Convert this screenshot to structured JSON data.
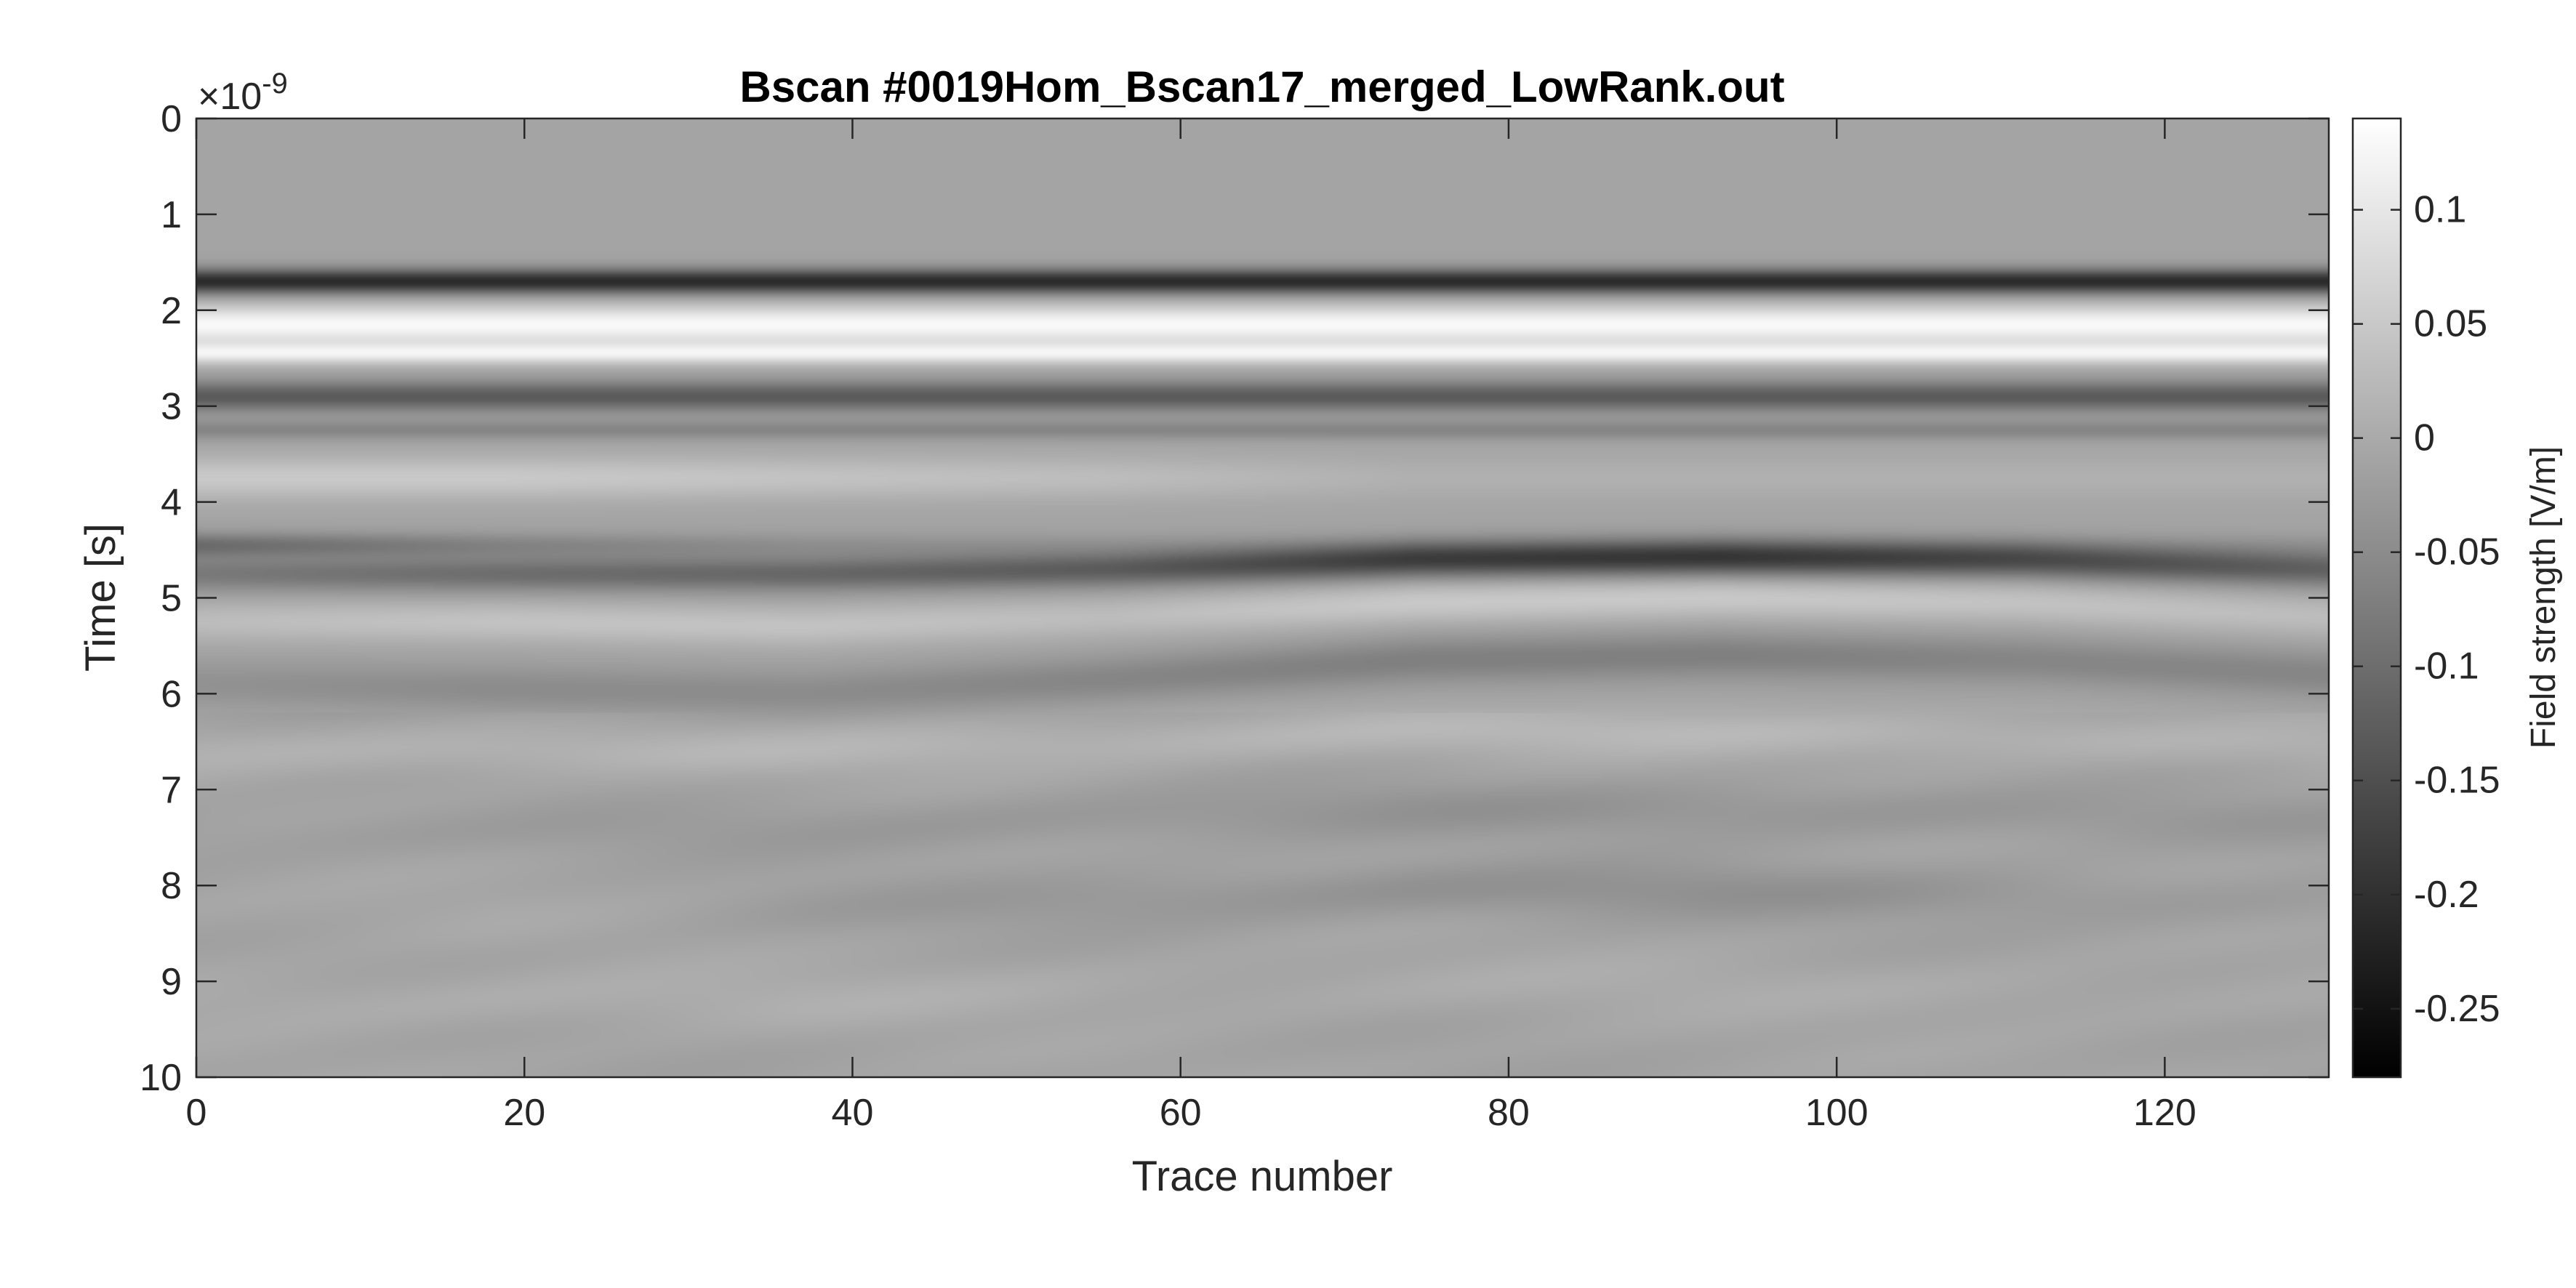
{
  "chart_data": {
    "type": "heatmap",
    "title": "Bscan #0019Hom_Bscan17_merged_LowRank.out",
    "xlabel": "Trace number",
    "ylabel": "Time [s]",
    "y_exponent_base": "×10",
    "y_exponent_power": "-9",
    "xlim": [
      0,
      130
    ],
    "ylim": [
      0,
      10
    ],
    "y_reversed": true,
    "x_ticks": [
      0,
      20,
      40,
      60,
      80,
      100,
      120
    ],
    "x_tick_labels": [
      "0",
      "20",
      "40",
      "60",
      "80",
      "100",
      "120"
    ],
    "y_ticks": [
      0,
      1,
      2,
      3,
      4,
      5,
      6,
      7,
      8,
      9,
      10
    ],
    "y_tick_labels": [
      "0",
      "1",
      "2",
      "3",
      "4",
      "5",
      "6",
      "7",
      "8",
      "9",
      "10"
    ],
    "colormap": "gray",
    "colorbar": {
      "label": "Field strength [V/m]",
      "clim": [
        -0.28,
        0.14
      ],
      "ticks": [
        0.1,
        0.05,
        0,
        -0.05,
        -0.1,
        -0.15,
        -0.2,
        -0.25
      ],
      "tick_labels": [
        "0.1",
        "0.05",
        "0",
        "-0.05",
        "-0.1",
        "-0.15",
        "-0.2",
        "-0.25"
      ]
    },
    "bands": [
      {
        "t": 1.7,
        "v": -0.2,
        "width": 0.09
      },
      {
        "t": 2.15,
        "v": 0.14,
        "width": 0.14
      },
      {
        "t": 2.45,
        "v": 0.12,
        "width": 0.08
      },
      {
        "t": 2.9,
        "v": -0.12,
        "width": 0.11
      },
      {
        "t": 3.25,
        "v": -0.05,
        "width": 0.07
      },
      {
        "t": 3.75,
        "v": 0.04,
        "width": 0.16,
        "trend": [
          0.06,
          0.06,
          0.05,
          0.04,
          0.02,
          0.02,
          0.02,
          0.02
        ]
      },
      {
        "t": 4.45,
        "v": -0.09,
        "width": 0.09,
        "trend": [
          -0.09,
          -0.05,
          -0.03,
          -0.02,
          -0.01,
          -0.01,
          -0.01,
          -0.02
        ]
      },
      {
        "t_trend": [
          4.75,
          4.75,
          4.75,
          4.7,
          4.6,
          4.58,
          4.6,
          4.7
        ],
        "v_trend": [
          -0.07,
          -0.09,
          -0.1,
          -0.12,
          -0.17,
          -0.18,
          -0.15,
          -0.11
        ],
        "width": 0.13
      },
      {
        "t_trend": [
          5.25,
          5.25,
          5.3,
          5.2,
          5.05,
          5.0,
          5.05,
          5.2
        ],
        "v_trend": [
          0.04,
          0.05,
          0.05,
          0.04,
          0.06,
          0.06,
          0.05,
          0.04
        ],
        "width": 0.15
      },
      {
        "t_trend": [
          5.9,
          5.95,
          6.0,
          5.85,
          5.65,
          5.6,
          5.65,
          5.8
        ],
        "v_trend": [
          -0.03,
          -0.04,
          -0.04,
          -0.05,
          -0.06,
          -0.06,
          -0.05,
          -0.05
        ],
        "width": 0.17
      },
      {
        "t_trend": [
          6.6,
          6.6,
          6.6,
          6.5,
          6.4,
          6.4,
          6.45,
          6.55
        ],
        "v_trend": [
          0.02,
          0.025,
          0.025,
          0.025,
          0.03,
          0.03,
          0.025,
          0.02
        ],
        "width": 0.18
      },
      {
        "t_trend": [
          7.5,
          7.45,
          7.4,
          7.3,
          7.2,
          7.2,
          7.25,
          7.35
        ],
        "v_trend": [
          -0.01,
          -0.01,
          -0.015,
          -0.02,
          -0.025,
          -0.025,
          -0.02,
          -0.015
        ],
        "width": 0.2
      },
      {
        "t_trend": [
          8.3,
          8.3,
          8.25,
          8.15,
          8.05,
          8.05,
          8.1,
          8.2
        ],
        "v_trend": [
          0.005,
          0.005,
          -0.01,
          -0.02,
          -0.03,
          -0.03,
          -0.02,
          -0.01
        ],
        "width": 0.2
      },
      {
        "t_trend": [
          9.2,
          9.2,
          9.2,
          9.1,
          9.05,
          9.05,
          9.1,
          9.2
        ],
        "v_trend": [
          0.01,
          0.015,
          0.015,
          0.01,
          0.01,
          0.01,
          0.01,
          0.005
        ],
        "width": 0.22
      }
    ],
    "background_value": -0.01
  }
}
